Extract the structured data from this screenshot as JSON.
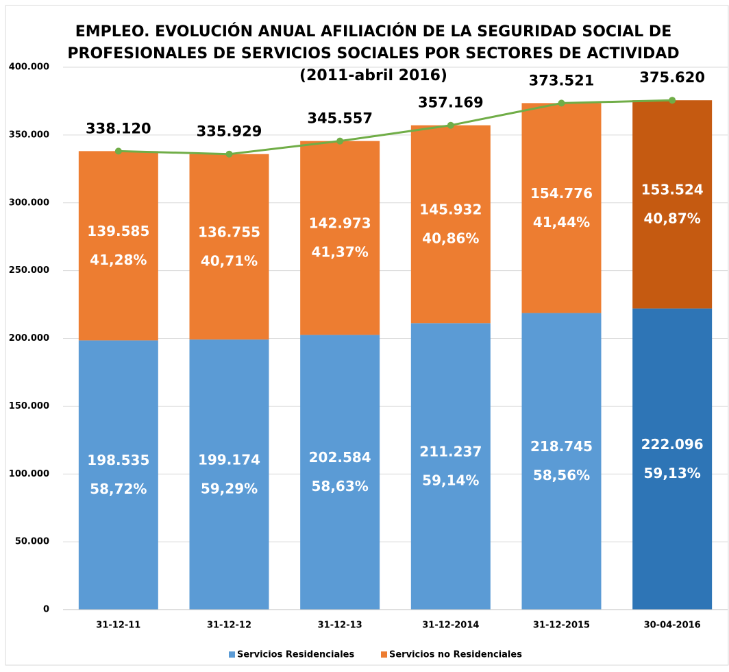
{
  "chart_data": {
    "type": "stacked_bar_line",
    "title_lines": [
      "EMPLEO. EVOLUCIÓN ANUAL AFILIACIÓN DE LA SEGURIDAD SOCIAL DE",
      "PROFESIONALES DE SERVICIOS SOCIALES POR SECTORES DE ACTIVIDAD",
      "(2011-abril 2016)"
    ],
    "categories": [
      "31-12-11",
      "31-12-12",
      "31-12-13",
      "31-12-2014",
      "31-12-2015",
      "30-04-2016"
    ],
    "ylim": [
      0,
      400000
    ],
    "yticks": [
      0,
      {
        "value": 50000,
        "label": "50.000"
      },
      {
        "value": 100000,
        "label": "100.000"
      },
      {
        "value": 150000,
        "label": "150.000"
      },
      {
        "value": 200000,
        "label": "200.000"
      },
      {
        "value": 250000,
        "label": "250.000"
      },
      {
        "value": 300000,
        "label": "300.000"
      },
      {
        "value": 350000,
        "label": "350.000"
      },
      {
        "value": 400000,
        "label": "400.000"
      }
    ],
    "grid": true,
    "series": [
      {
        "name": "Servicios Residenciales",
        "color": "#5b9bd5",
        "colors": [
          "#5b9bd5",
          "#5b9bd5",
          "#5b9bd5",
          "#5b9bd5",
          "#5b9bd5",
          "#2e75b6"
        ],
        "values": [
          198535,
          199174,
          202584,
          211237,
          218745,
          222096
        ],
        "value_labels": [
          "198.535",
          "199.174",
          "202.584",
          "211.237",
          "218.745",
          "222.096"
        ],
        "share_labels": [
          "58,72%",
          "59,29%",
          "58,63%",
          "59,14%",
          "58,56%",
          "59,13%"
        ]
      },
      {
        "name": "Servicios no Residenciales",
        "color": "#ed7d31",
        "colors": [
          "#ed7d31",
          "#ed7d31",
          "#ed7d31",
          "#ed7d31",
          "#ed7d31",
          "#c55a11"
        ],
        "values": [
          139585,
          136755,
          142973,
          145932,
          154776,
          153524
        ],
        "value_labels": [
          "139.585",
          "136.755",
          "142.973",
          "145.932",
          "154.776",
          "153.524"
        ],
        "share_labels": [
          "41,28%",
          "40,71%",
          "41,37%",
          "40,86%",
          "41,44%",
          "40,87%"
        ]
      }
    ],
    "total": {
      "color": "#70ad47",
      "values": [
        338120,
        335929,
        345557,
        357169,
        373521,
        375620
      ],
      "value_labels": [
        "338.120",
        "335.929",
        "345.557",
        "357.169",
        "373.521",
        "375.620"
      ]
    }
  }
}
